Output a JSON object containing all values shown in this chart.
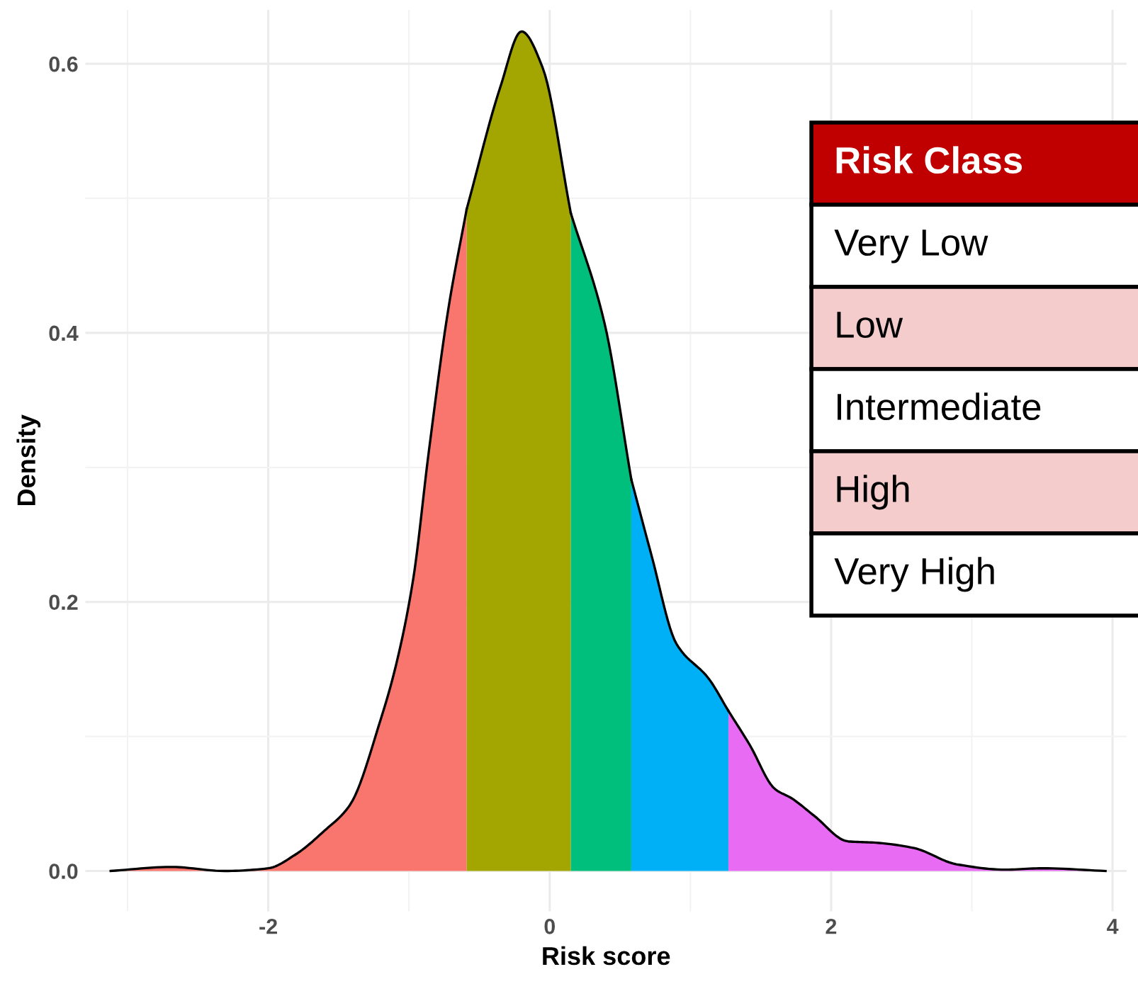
{
  "chart_data": {
    "type": "area",
    "xlabel": "Risk score",
    "ylabel": "Density",
    "xlim": [
      -3.3,
      4.1
    ],
    "ylim": [
      -0.03,
      0.64
    ],
    "xticks": [
      -2,
      0,
      2,
      4
    ],
    "yticks": [
      {
        "value": 0,
        "label": "0.0"
      },
      0.2,
      0.4,
      0.6
    ],
    "grid": true,
    "legend": false,
    "series": [
      {
        "color": "#f8766d",
        "x": [
          -3.12,
          -2.69,
          -2.31,
          -2.0,
          -1.81,
          -1.6,
          -1.42,
          -1.2,
          -1.09,
          -0.97,
          -0.86,
          -0.72,
          -0.59
        ],
        "values": [
          0,
          0.003,
          0,
          0.002,
          0.012,
          0.03,
          0.049,
          0.113,
          0.154,
          0.217,
          0.311,
          0.418,
          0.492
        ]
      },
      {
        "color": "#a3a500",
        "x": [
          -0.59,
          -0.35,
          -0.2,
          -0.05,
          0.15
        ],
        "values": [
          0.492,
          0.583,
          0.624,
          0.597,
          0.489
        ]
      },
      {
        "color": "#00bf7d",
        "x": [
          0.15,
          0.39,
          0.58
        ],
        "values": [
          0.489,
          0.407,
          0.291
        ]
      },
      {
        "color": "#00b0f6",
        "x": [
          0.58,
          0.72,
          0.9,
          1.13,
          1.27
        ],
        "values": [
          0.291,
          0.236,
          0.169,
          0.143,
          0.119
        ]
      },
      {
        "color": "#e76bf3",
        "x": [
          1.27,
          1.42,
          1.6,
          1.72,
          1.88,
          2.12,
          2.32,
          2.59,
          2.89,
          3.24,
          3.5,
          3.95
        ],
        "values": [
          0.119,
          0.094,
          0.061,
          0.054,
          0.041,
          0.022,
          0.021,
          0.017,
          0.005,
          0.001,
          0.002,
          0
        ]
      }
    ],
    "annotations": [
      "Risk Class",
      "Very Low",
      "Low",
      "Intermediate",
      "High",
      "Very High"
    ]
  }
}
